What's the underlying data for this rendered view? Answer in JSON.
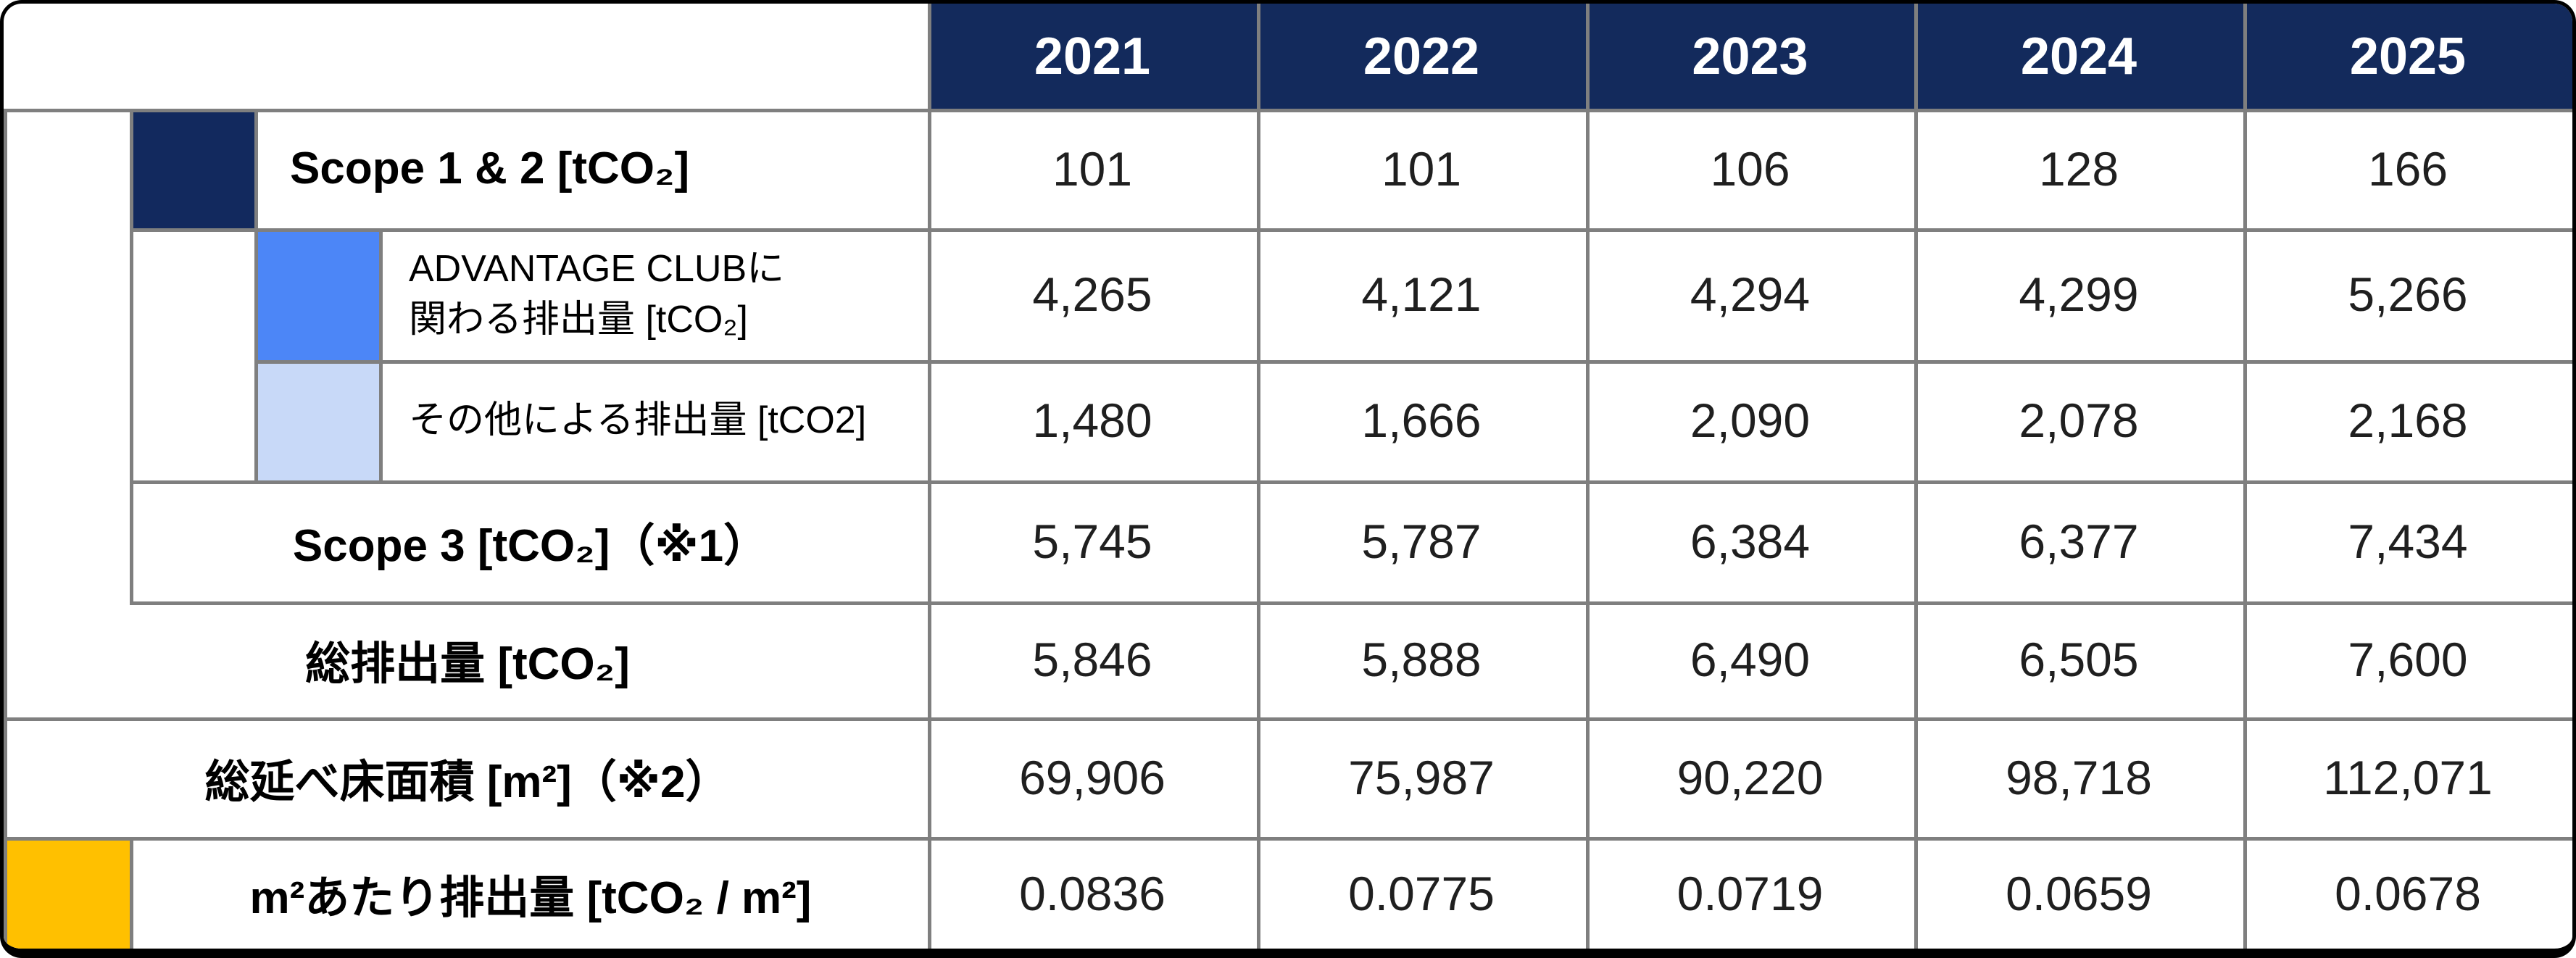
{
  "table": {
    "years": [
      "2021",
      "2022",
      "2023",
      "2024",
      "2025"
    ],
    "rows": [
      {
        "id": "scope12",
        "label": "Scope 1 & 2 [tCO₂]",
        "cells": [
          "101",
          "101",
          "106",
          "128",
          "166"
        ]
      },
      {
        "id": "advantage",
        "label": "ADVANTAGE CLUBに\n関わる排出量 [tCO₂]",
        "cells": [
          "4,265",
          "4,121",
          "4,294",
          "4,299",
          "5,266"
        ]
      },
      {
        "id": "other",
        "label": "その他による排出量 [tCO2]",
        "cells": [
          "1,480",
          "1,666",
          "2,090",
          "2,078",
          "2,168"
        ]
      },
      {
        "id": "scope3",
        "label": "Scope 3 [tCO₂]（※1）",
        "cells": [
          "5,745",
          "5,787",
          "6,384",
          "6,377",
          "7,434"
        ]
      },
      {
        "id": "total",
        "label": "総排出量 [tCO₂]",
        "cells": [
          "5,846",
          "5,888",
          "6,490",
          "6,505",
          "7,600"
        ]
      },
      {
        "id": "floor",
        "label": "総延べ床面積 [m²]（※2）",
        "cells": [
          "69,906",
          "75,987",
          "90,220",
          "98,718",
          "112,071"
        ]
      },
      {
        "id": "perm2",
        "label": "m²あたり排出量 [tCO₂ / m²]",
        "cells": [
          "0.0836",
          "0.0775",
          "0.0719",
          "0.0659",
          "0.0678"
        ]
      }
    ],
    "colors": {
      "header_bg": "#132A5C",
      "scope12_swatch": "#12295E",
      "advantage_swatch": "#4C86F7",
      "other_swatch": "#C8D9F8",
      "perm2_swatch": "#FFC000",
      "grid_gray": "#7F7F7F"
    }
  },
  "chart_data": {
    "type": "table",
    "title": "",
    "categories": [
      "2021",
      "2022",
      "2023",
      "2024",
      "2025"
    ],
    "series": [
      {
        "name": "Scope 1 & 2 [tCO₂]",
        "values": [
          101,
          101,
          106,
          128,
          166
        ]
      },
      {
        "name": "ADVANTAGE CLUBに関わる排出量 [tCO₂]",
        "values": [
          4265,
          4121,
          4294,
          4299,
          5266
        ]
      },
      {
        "name": "その他による排出量 [tCO2]",
        "values": [
          1480,
          1666,
          2090,
          2078,
          2168
        ]
      },
      {
        "name": "Scope 3 [tCO₂]（※1）",
        "values": [
          5745,
          5787,
          6384,
          6377,
          7434
        ]
      },
      {
        "name": "総排出量 [tCO₂]",
        "values": [
          5846,
          5888,
          6490,
          6505,
          7600
        ]
      },
      {
        "name": "総延べ床面積 [m²]（※2）",
        "values": [
          69906,
          75987,
          90220,
          98718,
          112071
        ]
      },
      {
        "name": "m²あたり排出量 [tCO₂ / m²]",
        "values": [
          0.0836,
          0.0775,
          0.0719,
          0.0659,
          0.0678
        ]
      }
    ],
    "legend_position": "none",
    "grid": true
  }
}
